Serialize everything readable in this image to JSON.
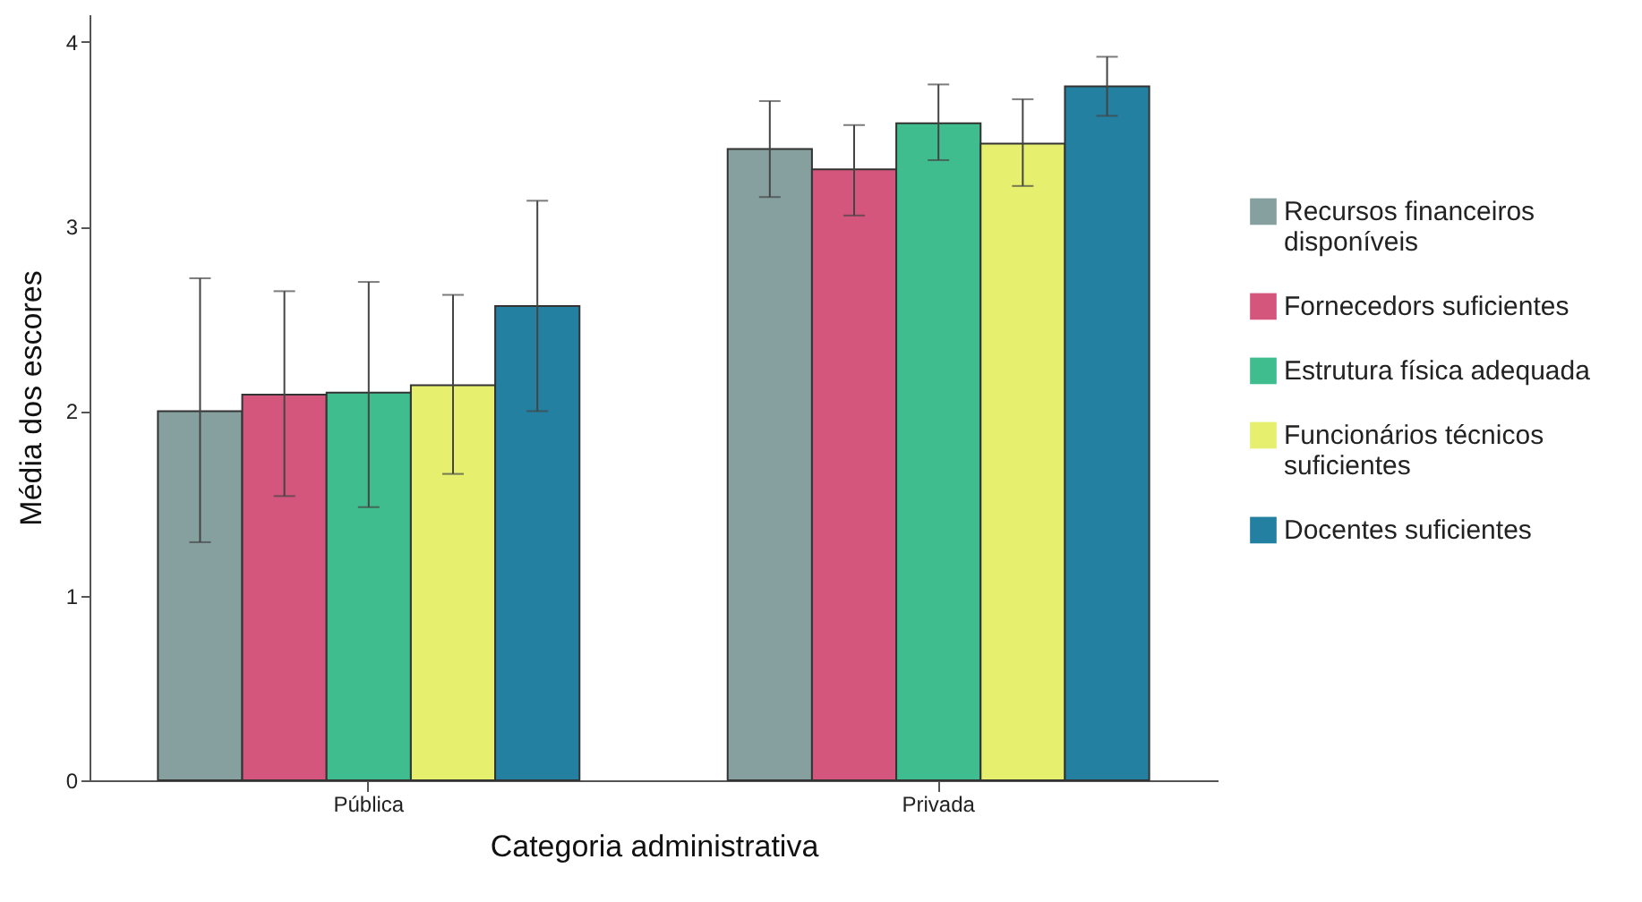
{
  "chart_data": {
    "type": "bar",
    "xlabel": "Categoria administrativa",
    "ylabel": "Média dos escores",
    "categories": [
      "Pública",
      "Privada"
    ],
    "ylim": [
      0,
      4.15
    ],
    "yticks": [
      0,
      1,
      2,
      3,
      4
    ],
    "grid": false,
    "legend": "right",
    "series": [
      {
        "name": "Recursos financeiros disponíveis",
        "color": "#86a0a0",
        "values": [
          2.0,
          3.42
        ],
        "errors": [
          [
            1.29,
            2.72
          ],
          [
            3.16,
            3.68
          ]
        ]
      },
      {
        "name": "Fornecedors suficientes",
        "color": "#d4567c",
        "values": [
          2.09,
          3.31
        ],
        "errors": [
          [
            1.54,
            2.65
          ],
          [
            3.06,
            3.55
          ]
        ]
      },
      {
        "name": "Estrutura física adequada",
        "color": "#40bd8e",
        "values": [
          2.1,
          3.56
        ],
        "errors": [
          [
            1.48,
            2.7
          ],
          [
            3.36,
            3.77
          ]
        ]
      },
      {
        "name": "Funcionários técnicos suficientes",
        "color": "#e6f06e",
        "values": [
          2.14,
          3.45
        ],
        "errors": [
          [
            1.66,
            2.63
          ],
          [
            3.22,
            3.69
          ]
        ]
      },
      {
        "name": "Docentes suficientes",
        "color": "#2380a0",
        "values": [
          2.57,
          3.76
        ],
        "errors": [
          [
            2.0,
            3.14
          ],
          [
            3.6,
            3.92
          ]
        ]
      }
    ]
  }
}
